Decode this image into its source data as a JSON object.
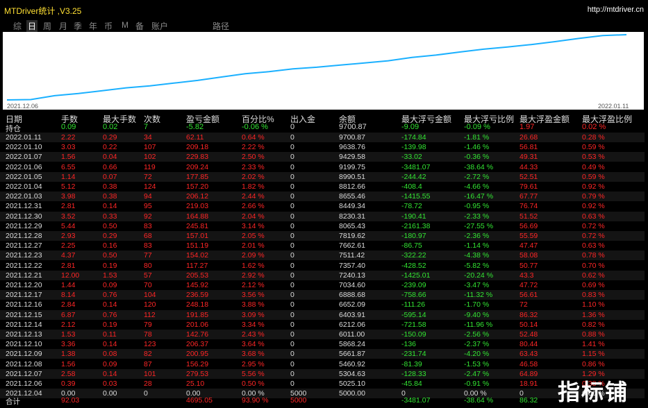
{
  "app": {
    "title": "MTDriver统计 ,V3.25",
    "url": "http://mtdriver.cn"
  },
  "tabs": [
    {
      "label": "综",
      "active": false
    },
    {
      "label": "日",
      "active": true
    },
    {
      "label": "周",
      "active": false
    },
    {
      "label": "月",
      "active": false
    },
    {
      "label": "季",
      "active": false
    },
    {
      "label": "年",
      "active": false
    },
    {
      "label": "币",
      "active": false
    },
    {
      "label": "M",
      "active": false
    },
    {
      "label": "备",
      "active": false
    },
    {
      "label": "账户",
      "active": false
    },
    {
      "label": "路径",
      "active": false
    }
  ],
  "chart_data": {
    "type": "line",
    "x_start": "2021.12.06",
    "x_end": "2022.01.11",
    "values": [
      5000,
      5025.1,
      5304.63,
      5460.92,
      5661.87,
      5868.24,
      6011.0,
      6212.06,
      6403.91,
      6652.09,
      6888.68,
      7034.6,
      7240.13,
      7357.4,
      7511.42,
      7662.61,
      7819.62,
      8065.43,
      8230.31,
      8449.34,
      8655.46,
      8812.66,
      8990.51,
      9199.75,
      9429.58,
      9638.76,
      9700.87
    ],
    "color": "#1ab0ff"
  },
  "headers": [
    "日期",
    "手数",
    "最大手数",
    "次数",
    "盈亏金额",
    "百分比%",
    "出入金",
    "余额",
    "最大浮亏金额",
    "最大浮亏比例",
    "最大浮盈金额",
    "最大浮盈比例"
  ],
  "holding": {
    "date": "持仓",
    "lots": "0.09",
    "max_lots": "0.02",
    "count": "7",
    "pnl": "-5.82",
    "pct": "-0.06 %",
    "io": "0",
    "balance": "9700.87",
    "max_loss": "-9.09",
    "max_loss_pct": "-0.09 %",
    "max_gain": "1.97",
    "max_gain_pct": "0.02 %"
  },
  "rows": [
    {
      "date": "2022.01.11",
      "lots": "2.22",
      "max_lots": "0.29",
      "count": "34",
      "pnl": "62.11",
      "pct": "0.64 %",
      "io": "0",
      "balance": "9700.87",
      "max_loss": "-174.84",
      "max_loss_pct": "-1.81 %",
      "max_gain": "26.68",
      "max_gain_pct": "0.28 %"
    },
    {
      "date": "2022.01.10",
      "lots": "3.03",
      "max_lots": "0.22",
      "count": "107",
      "pnl": "209.18",
      "pct": "2.22 %",
      "io": "0",
      "balance": "9638.76",
      "max_loss": "-139.98",
      "max_loss_pct": "-1.46 %",
      "max_gain": "56.81",
      "max_gain_pct": "0.59 %"
    },
    {
      "date": "2022.01.07",
      "lots": "1.56",
      "max_lots": "0.04",
      "count": "102",
      "pnl": "229.83",
      "pct": "2.50 %",
      "io": "0",
      "balance": "9429.58",
      "max_loss": "-33.02",
      "max_loss_pct": "-0.36 %",
      "max_gain": "49.31",
      "max_gain_pct": "0.53 %"
    },
    {
      "date": "2022.01.06",
      "lots": "6.55",
      "max_lots": "0.66",
      "count": "119",
      "pnl": "209.24",
      "pct": "2.33 %",
      "io": "0",
      "balance": "9199.75",
      "max_loss": "-3481.07",
      "max_loss_pct": "-38.64 %",
      "max_gain": "44.33",
      "max_gain_pct": "0.49 %"
    },
    {
      "date": "2022.01.05",
      "lots": "1.14",
      "max_lots": "0.07",
      "count": "72",
      "pnl": "177.85",
      "pct": "2.02 %",
      "io": "0",
      "balance": "8990.51",
      "max_loss": "-244.42",
      "max_loss_pct": "-2.72 %",
      "max_gain": "52.51",
      "max_gain_pct": "0.59 %"
    },
    {
      "date": "2022.01.04",
      "lots": "5.12",
      "max_lots": "0.38",
      "count": "124",
      "pnl": "157.20",
      "pct": "1.82 %",
      "io": "0",
      "balance": "8812.66",
      "max_loss": "-408.4",
      "max_loss_pct": "-4.66 %",
      "max_gain": "79.61",
      "max_gain_pct": "0.92 %"
    },
    {
      "date": "2022.01.03",
      "lots": "3.98",
      "max_lots": "0.38",
      "count": "94",
      "pnl": "206.12",
      "pct": "2.44 %",
      "io": "0",
      "balance": "8655.46",
      "max_loss": "-1415.55",
      "max_loss_pct": "-16.47 %",
      "max_gain": "67.77",
      "max_gain_pct": "0.79 %"
    },
    {
      "date": "2021.12.31",
      "lots": "2.81",
      "max_lots": "0.14",
      "count": "95",
      "pnl": "219.03",
      "pct": "2.66 %",
      "io": "0",
      "balance": "8449.34",
      "max_loss": "-78.72",
      "max_loss_pct": "-0.95 %",
      "max_gain": "76.74",
      "max_gain_pct": "0.92 %"
    },
    {
      "date": "2021.12.30",
      "lots": "3.52",
      "max_lots": "0.33",
      "count": "92",
      "pnl": "164.88",
      "pct": "2.04 %",
      "io": "0",
      "balance": "8230.31",
      "max_loss": "-190.41",
      "max_loss_pct": "-2.33 %",
      "max_gain": "51.52",
      "max_gain_pct": "0.63 %"
    },
    {
      "date": "2021.12.29",
      "lots": "5.44",
      "max_lots": "0.50",
      "count": "83",
      "pnl": "245.81",
      "pct": "3.14 %",
      "io": "0",
      "balance": "8065.43",
      "max_loss": "-2161.38",
      "max_loss_pct": "-27.55 %",
      "max_gain": "56.69",
      "max_gain_pct": "0.72 %"
    },
    {
      "date": "2021.12.28",
      "lots": "2.93",
      "max_lots": "0.29",
      "count": "68",
      "pnl": "157.01",
      "pct": "2.05 %",
      "io": "0",
      "balance": "7819.62",
      "max_loss": "-180.97",
      "max_loss_pct": "-2.36 %",
      "max_gain": "55.59",
      "max_gain_pct": "0.72 %"
    },
    {
      "date": "2021.12.27",
      "lots": "2.25",
      "max_lots": "0.16",
      "count": "83",
      "pnl": "151.19",
      "pct": "2.01 %",
      "io": "0",
      "balance": "7662.61",
      "max_loss": "-86.75",
      "max_loss_pct": "-1.14 %",
      "max_gain": "47.47",
      "max_gain_pct": "0.63 %"
    },
    {
      "date": "2021.12.23",
      "lots": "4.37",
      "max_lots": "0.50",
      "count": "77",
      "pnl": "154.02",
      "pct": "2.09 %",
      "io": "0",
      "balance": "7511.42",
      "max_loss": "-322.22",
      "max_loss_pct": "-4.38 %",
      "max_gain": "58.08",
      "max_gain_pct": "0.78 %"
    },
    {
      "date": "2021.12.22",
      "lots": "2.81",
      "max_lots": "0.19",
      "count": "80",
      "pnl": "117.27",
      "pct": "1.62 %",
      "io": "0",
      "balance": "7357.40",
      "max_loss": "-428.52",
      "max_loss_pct": "-5.82 %",
      "max_gain": "50.77",
      "max_gain_pct": "0.70 %"
    },
    {
      "date": "2021.12.21",
      "lots": "12.00",
      "max_lots": "1.53",
      "count": "57",
      "pnl": "205.53",
      "pct": "2.92 %",
      "io": "0",
      "balance": "7240.13",
      "max_loss": "-1425.01",
      "max_loss_pct": "-20.24 %",
      "max_gain": "43.3",
      "max_gain_pct": "0.62 %"
    },
    {
      "date": "2021.12.20",
      "lots": "1.44",
      "max_lots": "0.09",
      "count": "70",
      "pnl": "145.92",
      "pct": "2.12 %",
      "io": "0",
      "balance": "7034.60",
      "max_loss": "-239.09",
      "max_loss_pct": "-3.47 %",
      "max_gain": "47.72",
      "max_gain_pct": "0.69 %"
    },
    {
      "date": "2021.12.17",
      "lots": "8.14",
      "max_lots": "0.76",
      "count": "104",
      "pnl": "236.59",
      "pct": "3.56 %",
      "io": "0",
      "balance": "6888.68",
      "max_loss": "-758.66",
      "max_loss_pct": "-11.32 %",
      "max_gain": "56.61",
      "max_gain_pct": "0.83 %"
    },
    {
      "date": "2021.12.16",
      "lots": "2.84",
      "max_lots": "0.14",
      "count": "120",
      "pnl": "248.18",
      "pct": "3.88 %",
      "io": "0",
      "balance": "6652.09",
      "max_loss": "-111.26",
      "max_loss_pct": "-1.70 %",
      "max_gain": "72",
      "max_gain_pct": "1.10 %"
    },
    {
      "date": "2021.12.15",
      "lots": "6.87",
      "max_lots": "0.76",
      "count": "112",
      "pnl": "191.85",
      "pct": "3.09 %",
      "io": "0",
      "balance": "6403.91",
      "max_loss": "-595.14",
      "max_loss_pct": "-9.40 %",
      "max_gain": "86.32",
      "max_gain_pct": "1.36 %"
    },
    {
      "date": "2021.12.14",
      "lots": "2.12",
      "max_lots": "0.19",
      "count": "79",
      "pnl": "201.06",
      "pct": "3.34 %",
      "io": "0",
      "balance": "6212.06",
      "max_loss": "-721.58",
      "max_loss_pct": "-11.96 %",
      "max_gain": "50.14",
      "max_gain_pct": "0.82 %"
    },
    {
      "date": "2021.12.13",
      "lots": "1.53",
      "max_lots": "0.11",
      "count": "78",
      "pnl": "142.76",
      "pct": "2.43 %",
      "io": "0",
      "balance": "6011.00",
      "max_loss": "-150.09",
      "max_loss_pct": "-2.56 %",
      "max_gain": "52.48",
      "max_gain_pct": "0.88 %"
    },
    {
      "date": "2021.12.10",
      "lots": "3.36",
      "max_lots": "0.14",
      "count": "123",
      "pnl": "206.37",
      "pct": "3.64 %",
      "io": "0",
      "balance": "5868.24",
      "max_loss": "-136",
      "max_loss_pct": "-2.37 %",
      "max_gain": "80.44",
      "max_gain_pct": "1.41 %"
    },
    {
      "date": "2021.12.09",
      "lots": "1.38",
      "max_lots": "0.08",
      "count": "82",
      "pnl": "200.95",
      "pct": "3.68 %",
      "io": "0",
      "balance": "5661.87",
      "max_loss": "-231.74",
      "max_loss_pct": "-4.20 %",
      "max_gain": "63.43",
      "max_gain_pct": "1.15 %"
    },
    {
      "date": "2021.12.08",
      "lots": "1.56",
      "max_lots": "0.09",
      "count": "87",
      "pnl": "156.29",
      "pct": "2.95 %",
      "io": "0",
      "balance": "5460.92",
      "max_loss": "-81.39",
      "max_loss_pct": "-1.53 %",
      "max_gain": "46.58",
      "max_gain_pct": "0.86 %"
    },
    {
      "date": "2021.12.07",
      "lots": "2.58",
      "max_lots": "0.14",
      "count": "101",
      "pnl": "279.53",
      "pct": "5.56 %",
      "io": "0",
      "balance": "5304.63",
      "max_loss": "-128.33",
      "max_loss_pct": "-2.47 %",
      "max_gain": "64.89",
      "max_gain_pct": "1.29 %"
    },
    {
      "date": "2021.12.06",
      "lots": "0.39",
      "max_lots": "0.03",
      "count": "28",
      "pnl": "25.10",
      "pct": "0.50 %",
      "io": "0",
      "balance": "5025.10",
      "max_loss": "-45.84",
      "max_loss_pct": "-0.91 %",
      "max_gain": "18.91",
      "max_gain_pct": "0.38 %"
    },
    {
      "date": "2021.12.04",
      "lots": "0.00",
      "max_lots": "0.00",
      "count": "0",
      "pnl": "0.00",
      "pct": "0.00 %",
      "io": "5000",
      "balance": "5000.00",
      "max_loss": "0",
      "max_loss_pct": "0.00 %",
      "max_gain": "0",
      "max_gain_pct": "0.00 %"
    }
  ],
  "total": {
    "date": "合计",
    "lots": "92.03",
    "max_lots": "",
    "count": "",
    "pnl": "4695.05",
    "pct": "93.90 %",
    "io": "5000",
    "balance": "",
    "max_loss": "-3481.07",
    "max_loss_pct": "-38.64 %",
    "max_gain": "86.32",
    "max_gain_pct": ""
  },
  "watermark": "指标铺"
}
